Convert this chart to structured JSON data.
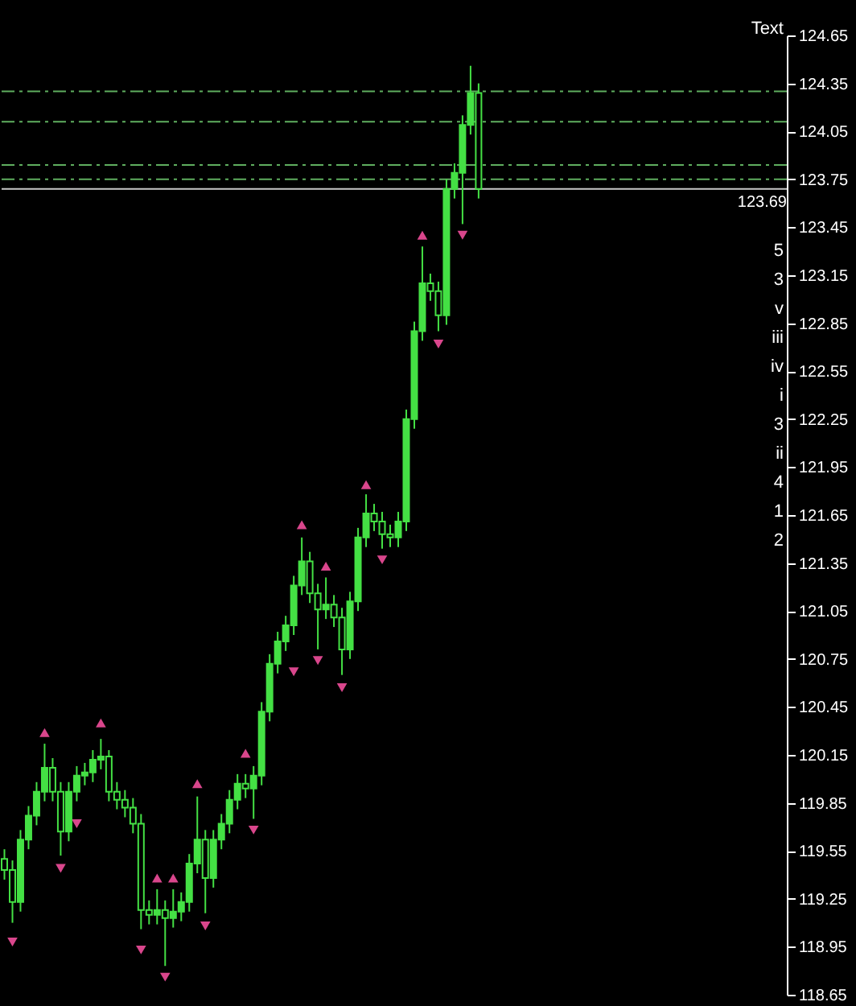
{
  "chart_data": {
    "type": "candlestick",
    "color": "#44e044",
    "tick_labels": "y",
    "categories": [
      null,
      null,
      null,
      null,
      null,
      null,
      null,
      null,
      null,
      null,
      null,
      null,
      null,
      null,
      null,
      null,
      null,
      null,
      null,
      null,
      null,
      null,
      null,
      null,
      null,
      null,
      null,
      null,
      null,
      null,
      null,
      null,
      null,
      null,
      null,
      null,
      null,
      null,
      null,
      null,
      null,
      null,
      null,
      null,
      null,
      null,
      null,
      null,
      null,
      null,
      null,
      null,
      null,
      null,
      null,
      null,
      null,
      null,
      null,
      null,
      null,
      null,
      null,
      null,
      null,
      null,
      null,
      null,
      null,
      null,
      null,
      null,
      null,
      null,
      null,
      null,
      null,
      null,
      null,
      null,
      null,
      null,
      null,
      null,
      null,
      null,
      null,
      null,
      null,
      null,
      null,
      null,
      null,
      null,
      null,
      null,
      null,
      null
    ],
    "ohlc": [
      [
        119.5,
        119.56,
        119.37,
        119.43
      ],
      [
        119.43,
        119.49,
        119.1,
        119.23
      ],
      [
        119.23,
        119.68,
        119.17,
        119.62
      ],
      [
        119.62,
        119.83,
        119.56,
        119.77
      ],
      [
        119.77,
        119.98,
        119.71,
        119.92
      ],
      [
        119.92,
        120.22,
        119.86,
        120.07
      ],
      [
        120.07,
        120.13,
        119.86,
        119.92
      ],
      [
        119.92,
        119.98,
        119.52,
        119.67
      ],
      [
        119.67,
        119.98,
        119.61,
        119.92
      ],
      [
        119.92,
        120.08,
        119.86,
        120.02
      ],
      [
        120.02,
        120.1,
        119.96,
        120.04
      ],
      [
        120.04,
        120.18,
        119.98,
        120.12
      ],
      [
        120.12,
        120.25,
        120.06,
        120.14
      ],
      [
        120.14,
        120.18,
        119.86,
        119.92
      ],
      [
        119.92,
        119.98,
        119.81,
        119.87
      ],
      [
        119.87,
        119.93,
        119.76,
        119.82
      ],
      [
        119.82,
        119.88,
        119.66,
        119.72
      ],
      [
        119.72,
        119.78,
        119.06,
        119.18
      ],
      [
        119.18,
        119.24,
        119.09,
        119.15
      ],
      [
        119.15,
        119.31,
        119.09,
        119.18
      ],
      [
        119.18,
        119.24,
        118.83,
        119.13
      ],
      [
        119.13,
        119.31,
        119.07,
        119.17
      ],
      [
        119.17,
        119.29,
        119.11,
        119.23
      ],
      [
        119.23,
        119.53,
        119.17,
        119.47
      ],
      [
        119.47,
        119.89,
        119.41,
        119.62
      ],
      [
        119.62,
        119.68,
        119.16,
        119.38
      ],
      [
        119.38,
        119.68,
        119.32,
        119.62
      ],
      [
        119.62,
        119.78,
        119.56,
        119.72
      ],
      [
        119.72,
        119.93,
        119.66,
        119.87
      ],
      [
        119.87,
        120.03,
        119.81,
        119.97
      ],
      [
        119.97,
        120.03,
        119.88,
        119.94
      ],
      [
        119.94,
        120.08,
        119.75,
        120.02
      ],
      [
        120.02,
        120.48,
        119.96,
        120.42
      ],
      [
        120.42,
        120.78,
        120.36,
        120.72
      ],
      [
        120.72,
        120.92,
        120.66,
        120.86
      ],
      [
        120.86,
        121.02,
        120.8,
        120.96
      ],
      [
        120.96,
        121.27,
        120.9,
        121.21
      ],
      [
        121.21,
        121.51,
        121.15,
        121.36
      ],
      [
        121.36,
        121.42,
        121.1,
        121.16
      ],
      [
        121.16,
        121.22,
        120.81,
        121.06
      ],
      [
        121.06,
        121.26,
        121.0,
        121.09
      ],
      [
        121.09,
        121.15,
        120.95,
        121.01
      ],
      [
        121.01,
        121.07,
        120.65,
        120.81
      ],
      [
        120.81,
        121.17,
        120.75,
        121.11
      ],
      [
        121.11,
        121.57,
        121.05,
        121.51
      ],
      [
        121.51,
        121.78,
        121.45,
        121.66
      ],
      [
        121.66,
        121.72,
        121.55,
        121.61
      ],
      [
        121.61,
        121.67,
        121.44,
        121.53
      ],
      [
        121.53,
        121.59,
        121.45,
        121.51
      ],
      [
        121.51,
        121.67,
        121.45,
        121.61
      ],
      [
        121.61,
        122.31,
        121.55,
        122.25
      ],
      [
        122.25,
        122.86,
        122.19,
        122.8
      ],
      [
        122.8,
        123.33,
        122.74,
        123.1
      ],
      [
        123.1,
        123.16,
        122.99,
        123.05
      ],
      [
        123.05,
        123.11,
        122.8,
        122.9
      ],
      [
        122.9,
        123.75,
        122.84,
        123.69
      ],
      [
        123.69,
        123.85,
        123.63,
        123.79
      ],
      [
        123.79,
        124.15,
        123.47,
        124.09
      ],
      [
        124.09,
        124.46,
        124.03,
        124.29
      ],
      [
        124.29,
        124.35,
        123.63,
        123.69
      ],
      null,
      null,
      null,
      null,
      null,
      null,
      null,
      null,
      null,
      null,
      null,
      null,
      null,
      null,
      null,
      null,
      null,
      null,
      null,
      null,
      null,
      null,
      null,
      null,
      null,
      null,
      null,
      null,
      null,
      null,
      null,
      null,
      null,
      null,
      null,
      null,
      null,
      null
    ],
    "series": [
      {
        "type": "scatter",
        "marker": "triangle",
        "color": "#d9468c",
        "values": [
          null,
          null,
          null,
          null,
          null,
          120.29,
          null,
          null,
          null,
          null,
          null,
          null,
          120.35,
          null,
          null,
          null,
          null,
          null,
          null,
          119.38,
          null,
          119.38,
          null,
          null,
          119.97,
          null,
          null,
          null,
          null,
          null,
          120.16,
          null,
          null,
          null,
          null,
          null,
          null,
          121.59,
          null,
          null,
          121.33,
          null,
          null,
          null,
          null,
          121.84,
          null,
          null,
          null,
          null,
          null,
          null,
          123.4,
          null,
          null,
          null,
          null,
          null,
          null,
          null,
          null,
          null,
          null,
          null,
          null,
          null,
          null,
          null,
          null,
          null,
          null,
          null,
          null,
          null,
          null,
          null,
          null,
          null,
          null,
          null,
          null,
          null,
          null,
          null,
          null,
          null,
          null,
          null,
          null,
          null,
          null,
          null,
          null,
          null,
          null,
          null,
          null,
          null
        ]
      },
      {
        "type": "scatter",
        "marker": "triangle-down",
        "color": "#d9468c",
        "values": [
          null,
          118.98,
          null,
          null,
          null,
          null,
          null,
          119.44,
          null,
          119.72,
          null,
          null,
          null,
          null,
          null,
          null,
          null,
          118.93,
          null,
          null,
          118.76,
          null,
          null,
          null,
          null,
          119.08,
          null,
          null,
          null,
          null,
          null,
          119.68,
          null,
          null,
          null,
          null,
          120.67,
          null,
          null,
          120.74,
          null,
          null,
          120.57,
          null,
          null,
          null,
          null,
          121.37,
          null,
          null,
          null,
          null,
          null,
          null,
          122.72,
          null,
          null,
          123.4,
          null,
          null,
          null,
          null,
          null,
          null,
          null,
          null,
          null,
          null,
          null,
          null,
          null,
          null,
          null,
          null,
          null,
          null,
          null,
          null,
          null,
          null,
          null,
          null,
          null,
          null,
          null,
          null,
          null,
          null,
          null,
          null,
          null,
          null,
          null,
          null,
          null,
          null,
          null,
          null
        ]
      }
    ],
    "ylim": [
      118.65,
      124.65
    ],
    "yticks": [
      118.65,
      118.95,
      119.25,
      119.55,
      119.85,
      120.15,
      120.45,
      120.75,
      121.05,
      121.35,
      121.65,
      121.95,
      122.25,
      122.55,
      122.85,
      123.15,
      123.45,
      123.75,
      124.05,
      124.35,
      124.65
    ],
    "ref_lines": [
      {
        "axis": "y",
        "value": 124.3,
        "color": "#5fae5f",
        "line_style": "dashed"
      },
      {
        "axis": "y",
        "value": 124.11,
        "color": "#5fae5f",
        "line_style": "dashed"
      },
      {
        "axis": "y",
        "value": 123.84,
        "color": "#5fae5f",
        "line_style": "dashed"
      },
      {
        "axis": "y",
        "value": 123.75,
        "color": "#5fae5f",
        "line_style": "dashed"
      },
      {
        "axis": "y",
        "value": 123.69,
        "label": "123.69",
        "color": "#c8c8c8",
        "line_style": "solid"
      }
    ],
    "annotations": [
      "Text",
      "5",
      "3",
      "v",
      "iii",
      "iv",
      "i",
      "3",
      "ii",
      "4",
      "1",
      "2"
    ]
  }
}
